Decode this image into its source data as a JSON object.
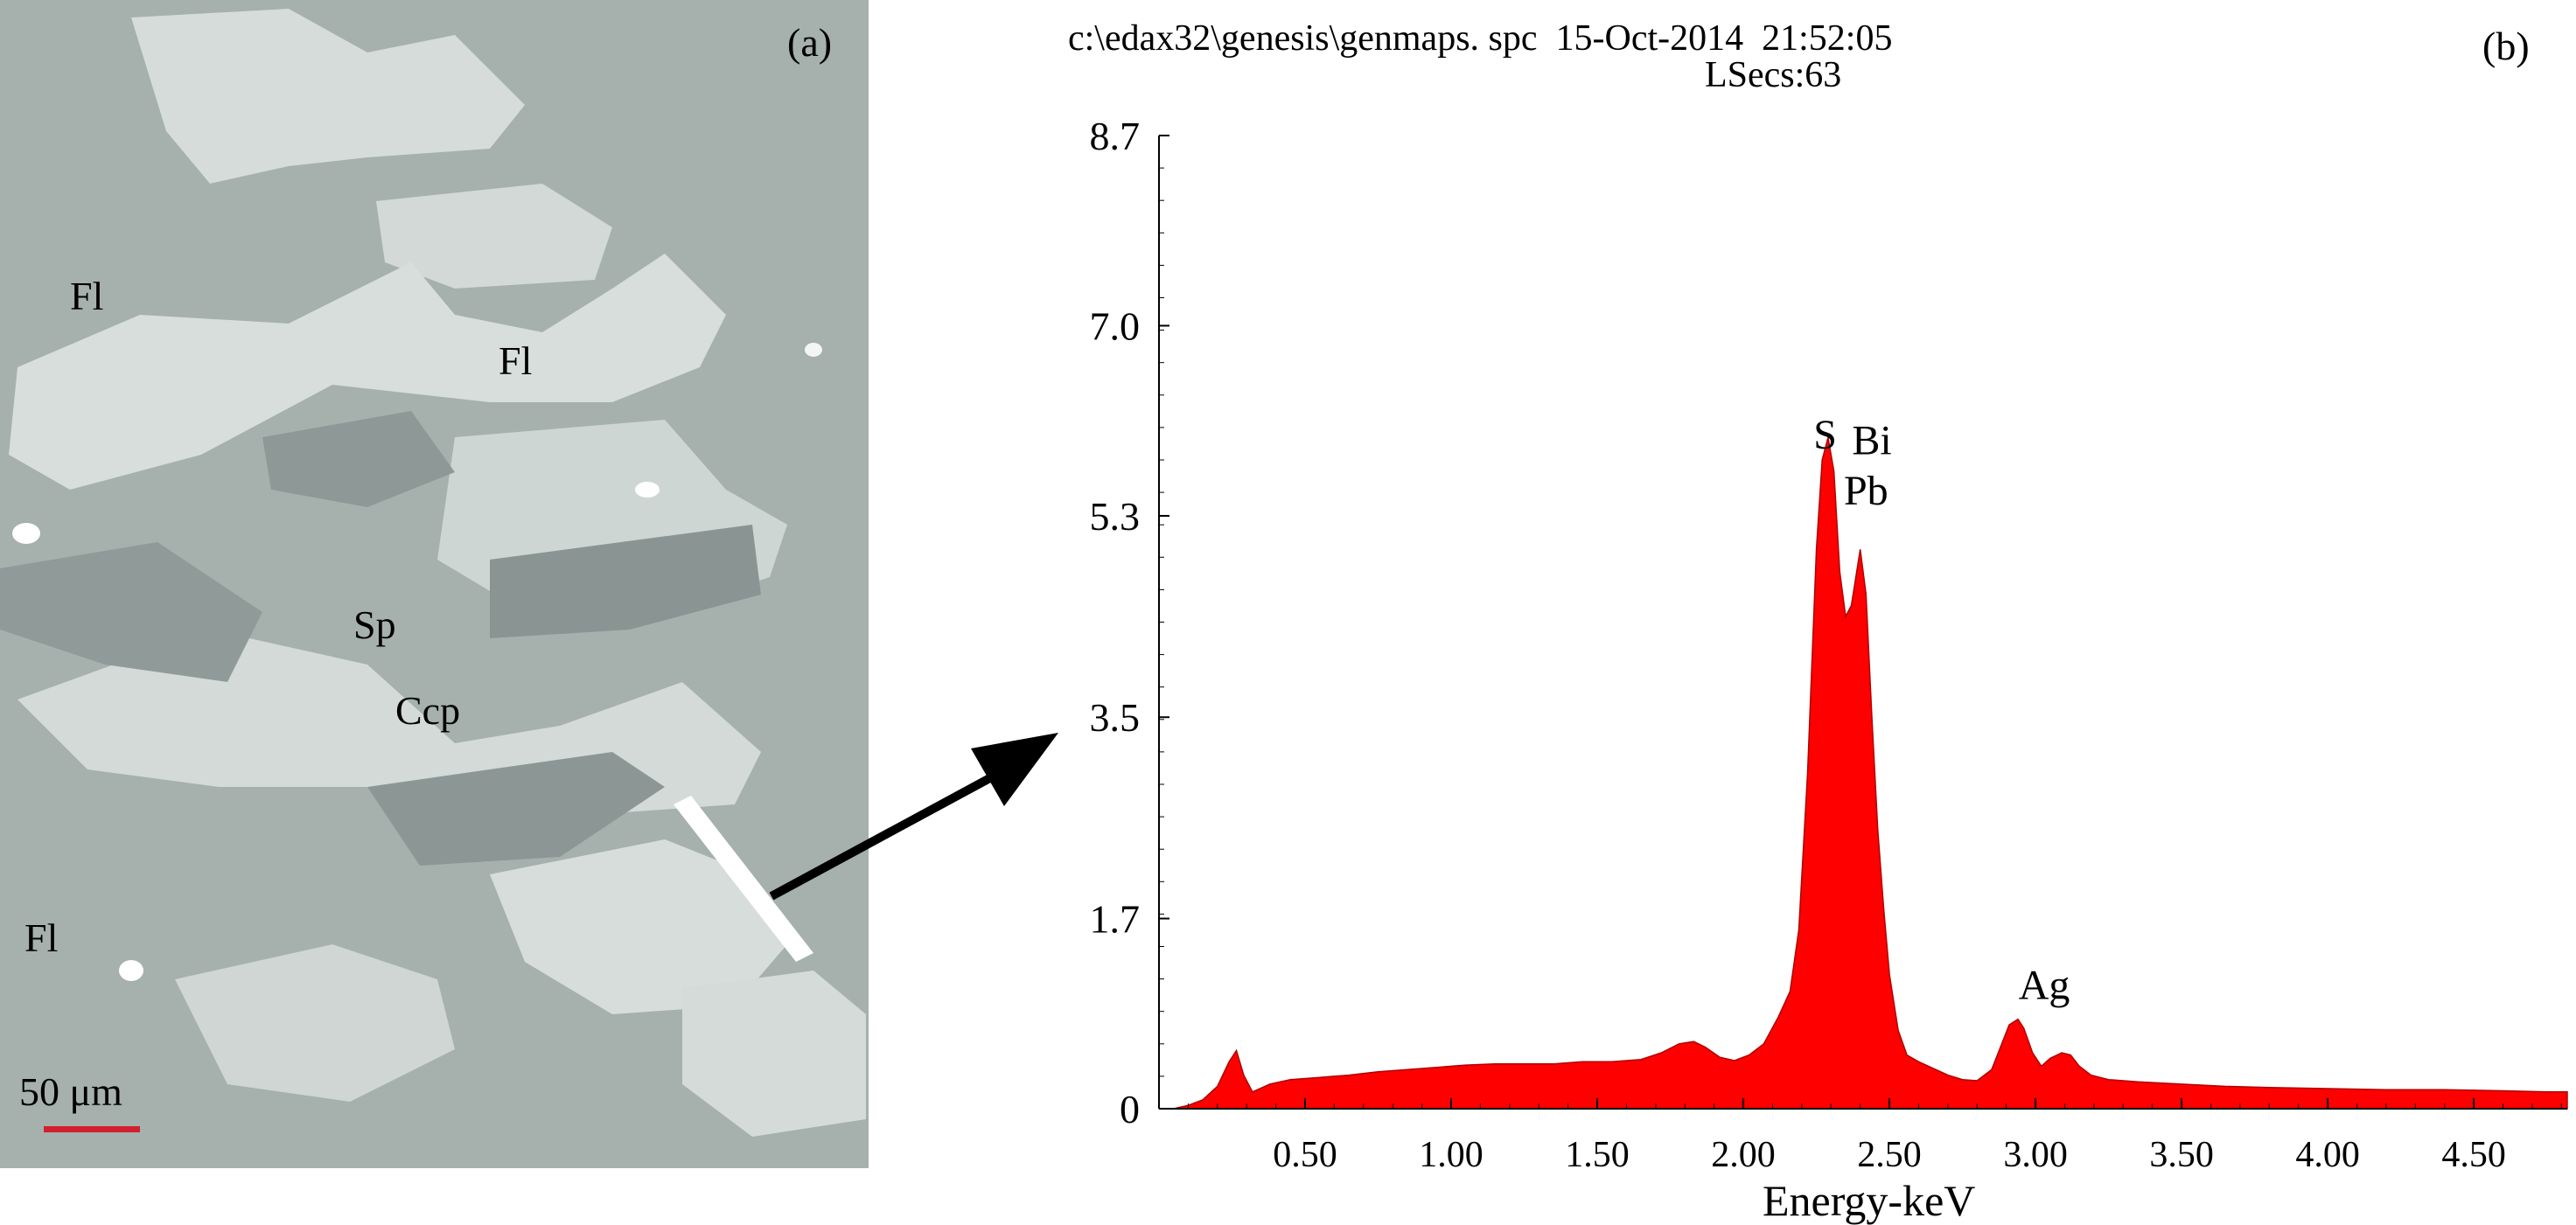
{
  "panel_a": {
    "label": "(a)",
    "mineral_labels": [
      "Fl",
      "Fl",
      "Sp",
      "Ccp",
      "Fl"
    ],
    "scale_text": "50 μm",
    "scale_bar_color": "#d1202f"
  },
  "panel_b": {
    "label": "(b)",
    "header_line1": "c:\\edax32\\genesis\\genmaps. spc  15-Oct-2014  21:52:05",
    "header_line2": "LSecs:63"
  },
  "chart_data": {
    "type": "area",
    "xlabel": "Energy-keV",
    "ylabel": "",
    "xlim": [
      0.0,
      4.82
    ],
    "ylim": [
      0,
      8.7
    ],
    "x_ticks": [
      "0.50",
      "1.00",
      "1.50",
      "2.00",
      "2.50",
      "3.00",
      "3.50",
      "4.00",
      "4.50"
    ],
    "y_ticks": [
      "0",
      "1.7",
      "3.5",
      "5.3",
      "7.0",
      "8.7"
    ],
    "fill_color": "#ff0000",
    "grid": false,
    "x": [
      0.05,
      0.1,
      0.15,
      0.2,
      0.24,
      0.265,
      0.29,
      0.32,
      0.38,
      0.45,
      0.55,
      0.65,
      0.75,
      0.85,
      0.95,
      1.05,
      1.15,
      1.25,
      1.35,
      1.45,
      1.55,
      1.65,
      1.72,
      1.78,
      1.83,
      1.87,
      1.92,
      1.97,
      2.02,
      2.07,
      2.12,
      2.16,
      2.19,
      2.22,
      2.25,
      2.27,
      2.29,
      2.31,
      2.33,
      2.35,
      2.37,
      2.4,
      2.42,
      2.44,
      2.46,
      2.48,
      2.5,
      2.53,
      2.56,
      2.6,
      2.65,
      2.7,
      2.75,
      2.8,
      2.85,
      2.88,
      2.91,
      2.94,
      2.96,
      2.99,
      3.02,
      3.05,
      3.09,
      3.12,
      3.15,
      3.19,
      3.25,
      3.35,
      3.5,
      3.65,
      3.8,
      4.0,
      4.2,
      4.4,
      4.6,
      4.75,
      4.82
    ],
    "y": [
      0.0,
      0.03,
      0.08,
      0.2,
      0.42,
      0.52,
      0.3,
      0.15,
      0.22,
      0.26,
      0.28,
      0.3,
      0.33,
      0.35,
      0.37,
      0.39,
      0.4,
      0.4,
      0.4,
      0.42,
      0.42,
      0.44,
      0.5,
      0.58,
      0.6,
      0.55,
      0.46,
      0.43,
      0.48,
      0.58,
      0.82,
      1.05,
      1.6,
      3.0,
      5.0,
      5.8,
      6.0,
      5.7,
      4.8,
      4.4,
      4.5,
      5.0,
      4.6,
      3.5,
      2.5,
      1.8,
      1.2,
      0.7,
      0.48,
      0.42,
      0.36,
      0.3,
      0.26,
      0.25,
      0.35,
      0.55,
      0.75,
      0.8,
      0.72,
      0.5,
      0.38,
      0.45,
      0.5,
      0.48,
      0.38,
      0.3,
      0.26,
      0.24,
      0.22,
      0.2,
      0.19,
      0.18,
      0.17,
      0.17,
      0.16,
      0.15,
      0.15
    ],
    "annotations": [
      {
        "text": "S",
        "x": 2.28,
        "y": 5.9
      },
      {
        "text": "Bi",
        "x": 2.44,
        "y": 5.85
      },
      {
        "text": "Pb",
        "x": 2.42,
        "y": 5.4
      },
      {
        "text": "Ag",
        "x": 3.03,
        "y": 0.98
      }
    ]
  }
}
